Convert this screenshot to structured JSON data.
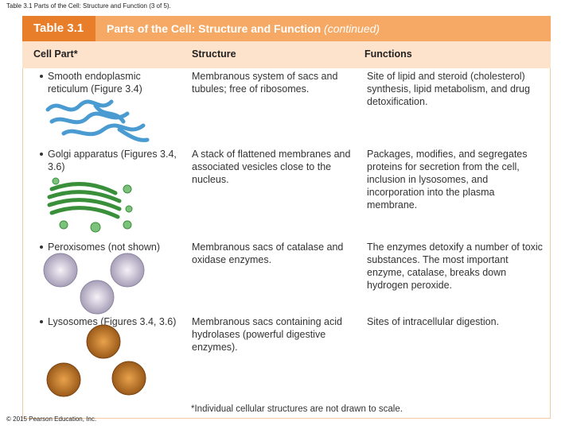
{
  "slide_title": "Table 3.1 Parts of the Cell: Structure and Function (3 of 5).",
  "header": {
    "label": "Table 3.1",
    "title": "Parts of the Cell: Structure and Function",
    "note": "(continued)"
  },
  "table": {
    "columns": [
      "Cell Part*",
      "Structure",
      "Functions"
    ],
    "rows": [
      [
        "Smooth endoplasmic reticulum (Figure 3.4)",
        "Membranous system of sacs and tubules; free of ribosomes.",
        "Site of lipid and steroid (cholesterol) synthesis, lipid metabolism, and drug detoxification."
      ],
      [
        "Golgi apparatus (Figures 3.4, 3.6)",
        "A stack of flattened membranes and associated vesicles close to the nucleus.",
        "Packages, modifies, and segregates proteins for secretion from the cell, inclusion in lysosomes, and incorporation into the plasma membrane."
      ],
      [
        "Peroxisomes (not shown)",
        "Membranous sacs of catalase and oxidase enzymes.",
        "The enzymes detoxify a number of toxic substances. The most important enzyme, catalase, breaks down hydrogen peroxide."
      ],
      [
        "Lysosomes (Figures 3.4, 3.6)",
        "Membranous sacs containing acid hydrolases (powerful digestive enzymes).",
        "Sites of intracellular digestion."
      ]
    ]
  },
  "footnote": "*Individual cellular structures are not drawn to scale.",
  "copyright": "© 2015 Pearson Education, Inc."
}
